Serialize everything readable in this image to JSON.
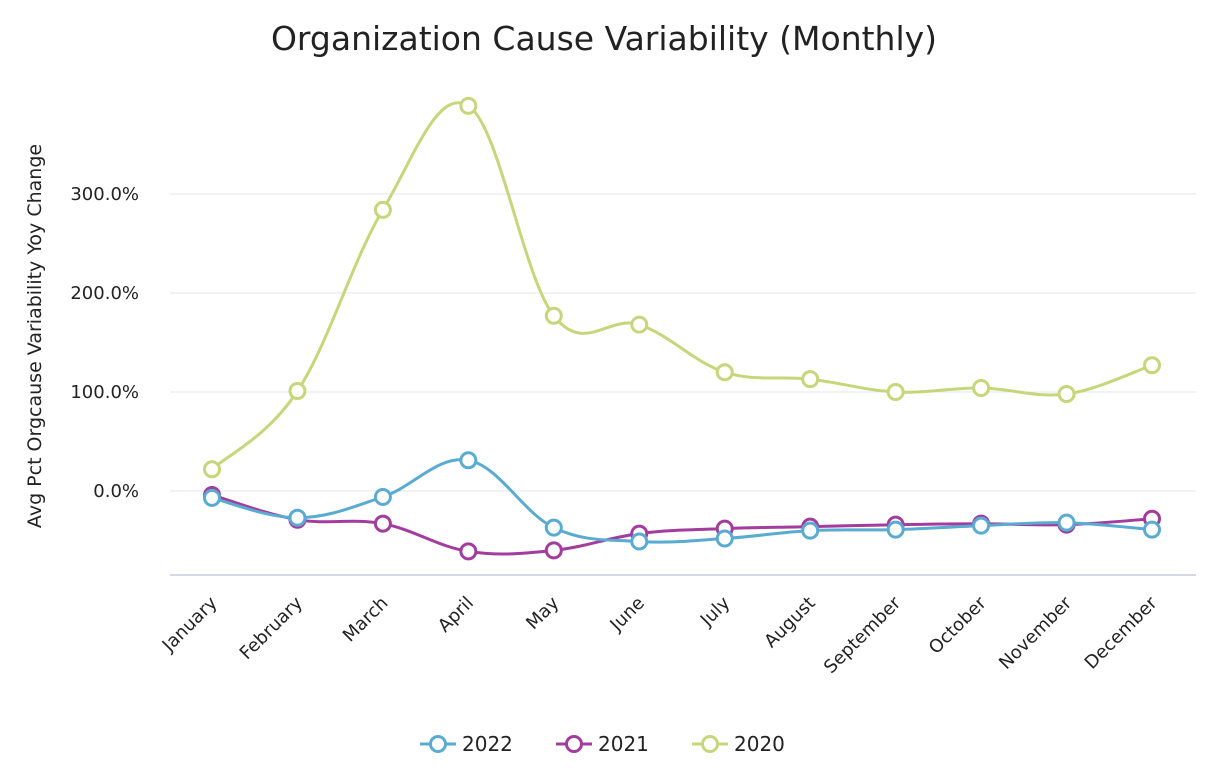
{
  "chart_data": {
    "type": "line",
    "title": "Organization Cause Variability (Monthly)",
    "xlabel": "",
    "ylabel": "Avg Pct Orgcause Variability Yoy Change",
    "categories": [
      "January",
      "February",
      "March",
      "April",
      "May",
      "June",
      "July",
      "August",
      "September",
      "October",
      "November",
      "December"
    ],
    "y_ticks": [
      {
        "value": 0,
        "label": "0.0%"
      },
      {
        "value": 100,
        "label": "100.0%"
      },
      {
        "value": 200,
        "label": "200.0%"
      },
      {
        "value": 300,
        "label": "300.0%"
      }
    ],
    "ylim": [
      -85,
      400
    ],
    "grid": true,
    "legend_position": "bottom",
    "series": [
      {
        "name": "2022",
        "color": "#5aabd1",
        "values": [
          -7,
          -27,
          -6,
          31,
          -37,
          -51,
          -48,
          -40,
          -39,
          -35,
          -32,
          -39
        ]
      },
      {
        "name": "2021",
        "color": "#a23c9d",
        "values": [
          -4,
          -29,
          -33,
          -61,
          -60,
          -43,
          -38,
          -36,
          -34,
          -33,
          -34,
          -28
        ]
      },
      {
        "name": "2020",
        "color": "#c6d67a",
        "values": [
          22,
          101,
          284,
          389,
          177,
          168,
          120,
          113,
          100,
          104,
          98,
          127
        ]
      }
    ]
  }
}
